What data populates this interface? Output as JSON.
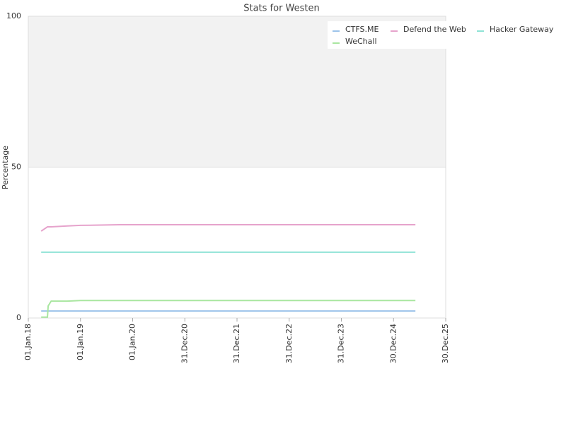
{
  "chart_data": {
    "type": "line",
    "title": "Stats for Westen",
    "y_label": "Percentage",
    "x": [
      "2018-04-01",
      "2018-05-15",
      "2018-05-20",
      "2018-06-10",
      "2018-10-01",
      "2019-01-01",
      "2019-10-01",
      "2025-06-01"
    ],
    "series": [
      {
        "name": "CTFS.ME",
        "color": "#9cc3ea",
        "values": [
          2.3,
          2.3,
          2.3,
          2.3,
          2.3,
          2.3,
          2.3,
          2.3
        ]
      },
      {
        "name": "Defend the Web",
        "color": "#e6a3cc",
        "values": [
          28.8,
          30.2,
          30.2,
          30.2,
          30.5,
          30.7,
          30.9,
          30.9
        ]
      },
      {
        "name": "Hacker Gateway",
        "color": "#8fe3d6",
        "values": [
          21.8,
          21.8,
          21.8,
          21.8,
          21.8,
          21.8,
          21.8,
          21.8
        ]
      },
      {
        "name": "WeChall",
        "color": "#a9e6a0",
        "values": [
          0.3,
          0.3,
          4,
          5.6,
          5.6,
          5.8,
          5.8,
          5.8
        ]
      }
    ],
    "xlim": [
      "2018-01-01",
      "2025-12-30"
    ],
    "xticks": [
      {
        "value": "2018-01-01",
        "label": "01.Jan.18"
      },
      {
        "value": "2019-01-01",
        "label": "01.Jan.19"
      },
      {
        "value": "2020-01-01",
        "label": "01.Jan.20"
      },
      {
        "value": "2020-12-31",
        "label": "31.Dec.20"
      },
      {
        "value": "2021-12-31",
        "label": "31.Dec.21"
      },
      {
        "value": "2022-12-31",
        "label": "31.Dec.22"
      },
      {
        "value": "2023-12-31",
        "label": "31.Dec.23"
      },
      {
        "value": "2024-12-30",
        "label": "30.Dec.24"
      },
      {
        "value": "2025-12-30",
        "label": "30.Dec.25"
      }
    ],
    "ylim": [
      0,
      100
    ],
    "yticks": [
      0,
      50,
      100
    ],
    "band": {
      "from": 50,
      "to": 100,
      "color": "#f2f2f2"
    },
    "grid": true,
    "legend": "upper right"
  }
}
